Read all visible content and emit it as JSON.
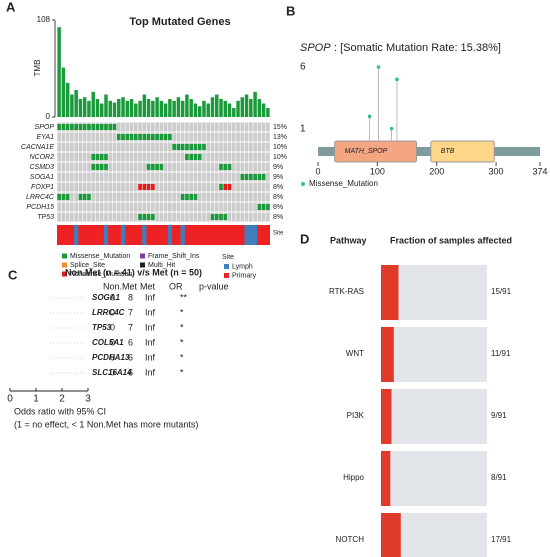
{
  "panels": {
    "A": "A",
    "B": "B",
    "C": "C",
    "D": "D"
  },
  "oncoplot": {
    "title": "Top Mutated Genes",
    "tmb_label": "TMB",
    "tmb_lim": [
      0,
      108
    ],
    "tmb_ticks": [
      0,
      108
    ],
    "tmb": [
      100,
      55,
      38,
      25,
      30,
      20,
      22,
      18,
      28,
      20,
      15,
      25,
      18,
      16,
      20,
      22,
      18,
      20,
      15,
      18,
      25,
      20,
      18,
      22,
      18,
      15,
      20,
      18,
      22,
      18,
      25,
      20,
      15,
      12,
      18,
      15,
      22,
      25,
      20,
      18,
      15,
      10,
      18,
      22,
      25,
      20,
      28,
      20,
      15,
      10
    ],
    "genes": [
      {
        "name": "SPOP",
        "pct": "15%",
        "missense": [
          0,
          1,
          2,
          3,
          4,
          5,
          6,
          7,
          8,
          9,
          10,
          11,
          12,
          13
        ],
        "nonsense": []
      },
      {
        "name": "EYA1",
        "pct": "13%",
        "missense": [
          14,
          15,
          16,
          17,
          18,
          19,
          20,
          21,
          22,
          23,
          24,
          25,
          26
        ],
        "nonsense": []
      },
      {
        "name": "CACNA1E",
        "pct": "10%",
        "missense": [
          27,
          28,
          29,
          30,
          31,
          32,
          33,
          34
        ],
        "nonsense": []
      },
      {
        "name": "NCOR2",
        "pct": "10%",
        "missense": [
          8,
          9,
          10,
          11,
          30,
          31,
          32,
          33
        ],
        "nonsense": []
      },
      {
        "name": "CSMD3",
        "pct": "9%",
        "missense": [
          8,
          9,
          10,
          11,
          21,
          22,
          23,
          24,
          38,
          39,
          40
        ],
        "nonsense": []
      },
      {
        "name": "SOGA1",
        "pct": "9%",
        "missense": [
          43,
          44,
          45,
          46,
          47,
          48
        ],
        "nonsense": []
      },
      {
        "name": "FOXP1",
        "pct": "8%",
        "missense": [
          38
        ],
        "nonsense": [
          19,
          20,
          21,
          22,
          39,
          40
        ]
      },
      {
        "name": "LRRC4C",
        "pct": "8%",
        "missense": [
          0,
          1,
          2,
          5,
          6,
          7,
          29,
          30,
          31,
          32
        ],
        "nonsense": []
      },
      {
        "name": "PCDH15",
        "pct": "8%",
        "missense": [
          47,
          48,
          49
        ],
        "nonsense": []
      },
      {
        "name": "TP53",
        "pct": "8%",
        "missense": [
          19,
          20,
          21,
          22,
          36,
          37,
          38,
          39
        ],
        "nonsense": []
      }
    ],
    "site_label": "Site",
    "lymph_samples": [
      4,
      11,
      15,
      20,
      26,
      29,
      44,
      45,
      46
    ],
    "legend": [
      {
        "name": "Missense_Mutation",
        "color": "#1a9a3a"
      },
      {
        "name": "Splice_Site",
        "color": "#f08a2c"
      },
      {
        "name": "Nonsense_Mutation",
        "color": "#e41a1c"
      },
      {
        "name": "Frame_Shift_Ins",
        "color": "#7b3f9e"
      },
      {
        "name": "Multi_Hit",
        "color": "#222222"
      }
    ],
    "site_legend_title": "Site",
    "site_legend": [
      {
        "name": "Lymph",
        "color": "#3c7fc0"
      },
      {
        "name": "Primary",
        "color": "#ee2222"
      }
    ]
  },
  "lollipop": {
    "gene": "SPOP",
    "title": ": [Somatic Mutation Rate: 15.38%]",
    "ylim": [
      0,
      6
    ],
    "yticks": [
      1,
      6
    ],
    "xlim": [
      0,
      374
    ],
    "xticks": [
      0,
      100,
      200,
      300,
      374
    ],
    "positions": [
      87,
      102,
      124,
      133
    ],
    "counts": [
      2,
      6,
      1,
      5
    ],
    "domains": [
      {
        "name": "MATH_SPOP",
        "start": 28,
        "end": 166,
        "color": "#f4a582"
      },
      {
        "name": "BTB",
        "start": 190,
        "end": 297,
        "color": "#fdd68a"
      }
    ],
    "legend": "Missense_Mutation"
  },
  "forest": {
    "title": "Non.Met (n = 41) v/s Met (n = 50)",
    "columns": [
      "Non.Met",
      "Met",
      "OR",
      "p-value"
    ],
    "rows": [
      [
        "SOGA1",
        "0",
        "8",
        "Inf",
        "**"
      ],
      [
        "LRRC4C",
        "0",
        "7",
        "Inf",
        "*"
      ],
      [
        "TP53",
        "0",
        "7",
        "Inf",
        "*"
      ],
      [
        "COL5A1",
        "0",
        "6",
        "Inf",
        "*"
      ],
      [
        "PCDHA13",
        "0",
        "6",
        "Inf",
        "*"
      ],
      [
        "SLC16A14",
        "0",
        "6",
        "Inf",
        "*"
      ]
    ],
    "xlim": [
      0,
      3
    ],
    "xticks": [
      0,
      1,
      2,
      3
    ],
    "xlabel": "Odds ratio with 95% CI",
    "note": "(1 = no effect, < 1 Non.Met has more mutants)"
  },
  "pathways": {
    "header_pathway": "Pathway",
    "header_fraction": "Fraction of samples affected",
    "names": [
      "RTK-RAS",
      "WNT",
      "PI3K",
      "Hippo",
      "NOTCH"
    ],
    "values": [
      15,
      11,
      9,
      8,
      17
    ],
    "value_labels": [
      "15/91",
      "11/91",
      "9/91",
      "8/91",
      "17/91"
    ],
    "total": 91
  }
}
